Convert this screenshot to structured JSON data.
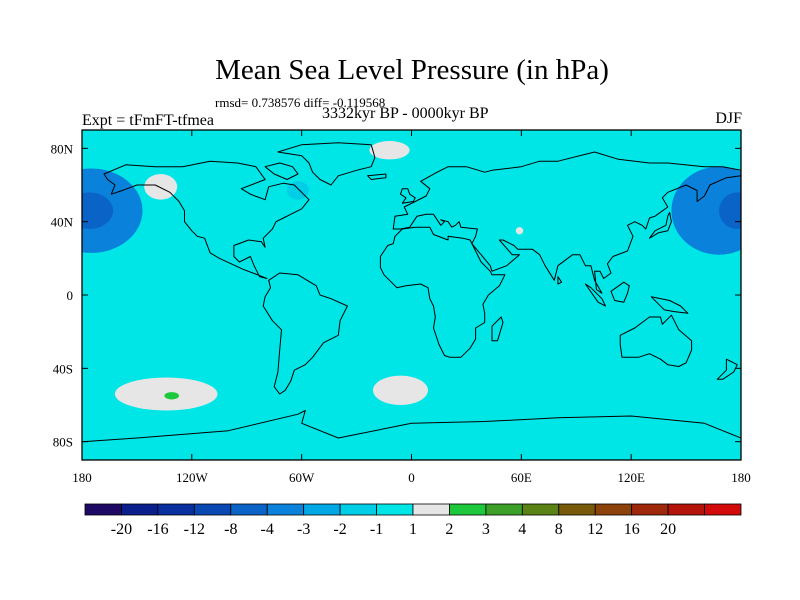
{
  "title": "Mean Sea Level Pressure (in hPa)",
  "stats": "rmsd= 0.738576 diff= -0.119568",
  "left_label": "Expt = tFmFT-tfmea",
  "center_label": "3332kyr BP - 0000kyr BP",
  "right_label": "DJF",
  "chart_data": {
    "type": "heatmap",
    "title": "Mean Sea Level Pressure (in hPa)",
    "subtitle": "3332kyr BP - 0000kyr BP",
    "projection": "cylindrical-equidistant",
    "xlim": [
      -180,
      180
    ],
    "ylim": [
      -90,
      90
    ],
    "x_ticks": [
      {
        "value": -180,
        "label": "180"
      },
      {
        "value": -120,
        "label": "120W"
      },
      {
        "value": -60,
        "label": "60W"
      },
      {
        "value": 0,
        "label": "0"
      },
      {
        "value": 60,
        "label": "60E"
      },
      {
        "value": 120,
        "label": "120E"
      },
      {
        "value": 180,
        "label": "180"
      }
    ],
    "y_ticks": [
      {
        "value": 80,
        "label": "80N"
      },
      {
        "value": 40,
        "label": "40N"
      },
      {
        "value": 0,
        "label": "0"
      },
      {
        "value": -40,
        "label": "40S"
      },
      {
        "value": -80,
        "label": "80S"
      }
    ],
    "colorbar": {
      "colors": [
        "#1e0a64",
        "#0a1e8c",
        "#0a30a0",
        "#0a48b4",
        "#0a64c8",
        "#0a82dc",
        "#00a8e6",
        "#00cde6",
        "#00e6e6",
        "#e6e6e6",
        "#1ec83c",
        "#3ca028",
        "#5a8214",
        "#785a0a",
        "#8c420a",
        "#a0280a",
        "#b4140a",
        "#d20a0a"
      ],
      "labels": [
        "-20",
        "-16",
        "-12",
        "-8",
        "-4",
        "-3",
        "-2",
        "-1",
        "1",
        "2",
        "3",
        "4",
        "8",
        "12",
        "16",
        "20"
      ]
    },
    "regions": [
      {
        "lon": -175,
        "lat": 46,
        "rx": 28,
        "ry": 23,
        "value": -4
      },
      {
        "lon": -176,
        "lat": 46,
        "rx": 13,
        "ry": 10,
        "value": -8
      },
      {
        "lon": 168,
        "lat": 46,
        "rx": 26,
        "ry": 24,
        "value": -4
      },
      {
        "lon": 178,
        "lat": 46,
        "rx": 10,
        "ry": 10,
        "value": -8
      },
      {
        "lon": -40,
        "lat": 53,
        "rx": 48,
        "ry": 13,
        "value": -1
      },
      {
        "lon": -52,
        "lat": 64,
        "rx": 18,
        "ry": 13,
        "value": -1
      },
      {
        "lon": -62,
        "lat": 57,
        "rx": 6,
        "ry": 5,
        "value": -2
      },
      {
        "lon": -10,
        "lat": 87,
        "rx": 5,
        "ry": 3,
        "value": -1
      },
      {
        "lon": -137,
        "lat": 59,
        "rx": 9,
        "ry": 7,
        "value": 1
      },
      {
        "lon": -12,
        "lat": 79,
        "rx": 11,
        "ry": 5,
        "value": 1
      },
      {
        "lon": 22,
        "lat": 47,
        "rx": 5,
        "ry": 2,
        "value": -1
      },
      {
        "lon": 59,
        "lat": 35,
        "rx": 2,
        "ry": 2,
        "value": 1
      },
      {
        "lon": 74,
        "lat": 35,
        "rx": 2,
        "ry": 2,
        "value": -1
      },
      {
        "lon": -59,
        "lat": -3,
        "rx": 6,
        "ry": 6,
        "value": -1
      },
      {
        "lon": -58,
        "lat": -24,
        "rx": 4,
        "ry": 5,
        "value": -1
      },
      {
        "lon": 136,
        "lat": -28,
        "rx": 10,
        "ry": 4,
        "value": -1
      },
      {
        "lon": -134,
        "lat": -54,
        "rx": 28,
        "ry": 9,
        "value": 1
      },
      {
        "lon": -131,
        "lat": -55,
        "rx": 4,
        "ry": 2,
        "value": 2
      },
      {
        "lon": -6,
        "lat": -52,
        "rx": 15,
        "ry": 8,
        "value": 1
      }
    ]
  }
}
